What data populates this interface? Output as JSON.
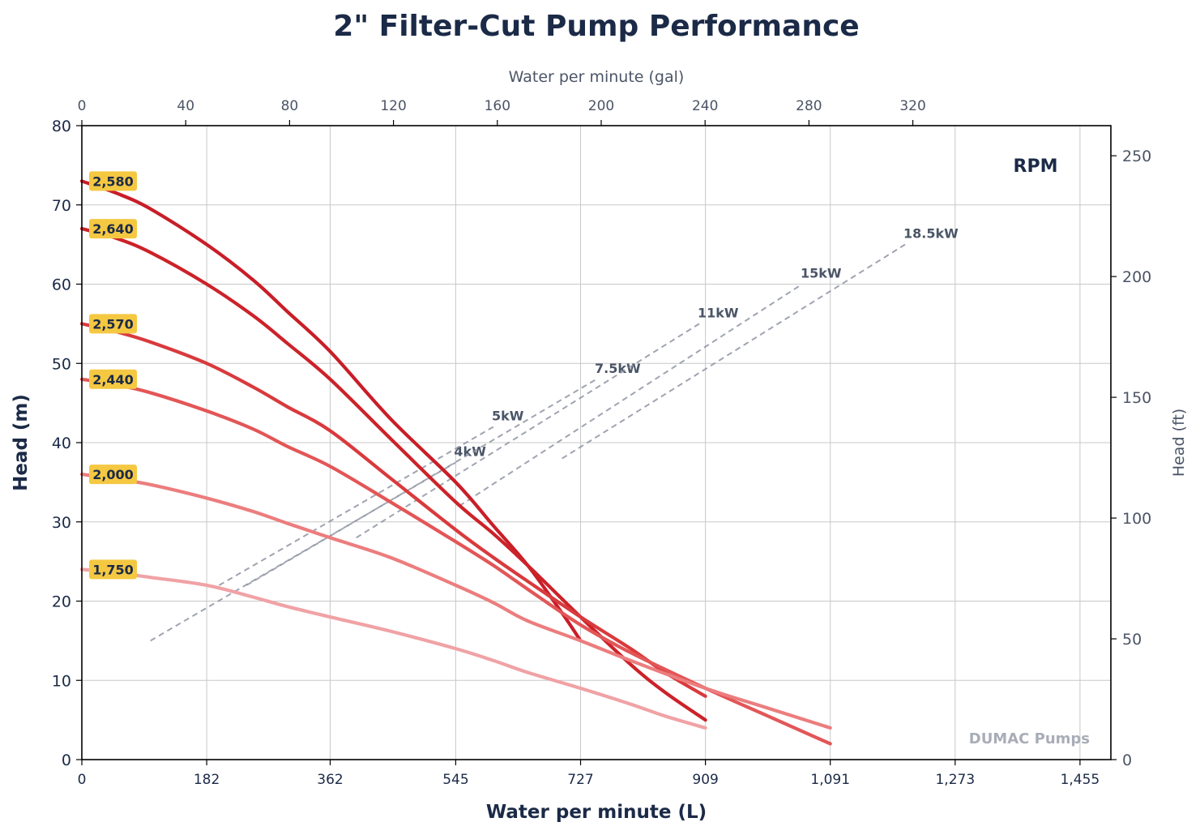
{
  "chart_data": {
    "type": "line",
    "title": "2\" Filter-Cut Pump Performance",
    "xlabel": "Water per minute (L)",
    "ylabel": "Head (m)",
    "x2label": "Water per minute (gal)",
    "y2label": "Head (ft)",
    "legend_title": "RPM",
    "watermark": "DUMAC Pumps",
    "xlim": [
      0,
      1500
    ],
    "ylim": [
      0,
      80
    ],
    "x_ticks": [
      0,
      182,
      362,
      545,
      727,
      909,
      1091,
      1273,
      1455
    ],
    "x_tick_labels": [
      "0",
      "182",
      "362",
      "545",
      "727",
      "909",
      "1,091",
      "1,273",
      "1,455"
    ],
    "y_ticks": [
      0,
      10,
      20,
      30,
      40,
      50,
      60,
      70,
      80
    ],
    "y_tick_labels": [
      "0",
      "10",
      "20",
      "30",
      "40",
      "50",
      "60",
      "70",
      "80"
    ],
    "x2_ticks": [
      0,
      40,
      80,
      120,
      160,
      200,
      240,
      280,
      320
    ],
    "x2_tick_labels": [
      "0",
      "40",
      "80",
      "120",
      "160",
      "200",
      "240",
      "280",
      "320"
    ],
    "y2_ticks": [
      0,
      50,
      100,
      150,
      200,
      250
    ],
    "y2_tick_labels": [
      "0",
      "50",
      "100",
      "150",
      "200",
      "250"
    ],
    "grid": true,
    "series": [
      {
        "name": "2,580",
        "color": "#c81e28",
        "x": [
          0,
          50,
          100,
          182,
          250,
          300,
          362,
          450,
          545,
          600,
          650,
          700,
          727
        ],
        "y": [
          73,
          71.5,
          69.5,
          65,
          60.5,
          56.5,
          51.5,
          43,
          35,
          29.5,
          24.5,
          18.5,
          15
        ]
      },
      {
        "name": "2,640",
        "color": "#cc2229",
        "x": [
          0,
          50,
          100,
          182,
          250,
          300,
          362,
          450,
          545,
          600,
          650,
          727,
          800,
          850,
          909
        ],
        "y": [
          67,
          65.8,
          64,
          60,
          56,
          52.5,
          48,
          40.5,
          32.5,
          28.5,
          24.5,
          18,
          12,
          8.5,
          5
        ]
      },
      {
        "name": "2,570",
        "color": "#d93a3d",
        "x": [
          0,
          50,
          100,
          182,
          250,
          300,
          362,
          450,
          545,
          600,
          650,
          727,
          800,
          850,
          909
        ],
        "y": [
          55,
          54,
          52.7,
          50,
          47,
          44.5,
          41.5,
          35.5,
          29,
          25.5,
          22.5,
          18,
          14,
          11,
          8
        ]
      },
      {
        "name": "2,440",
        "color": "#e35657",
        "x": [
          0,
          50,
          100,
          182,
          250,
          300,
          362,
          450,
          545,
          600,
          650,
          727,
          800,
          909,
          1000,
          1091
        ],
        "y": [
          48,
          47.3,
          46.3,
          44,
          41.7,
          39.5,
          37,
          32.5,
          27.5,
          24.5,
          21.5,
          17,
          13.5,
          9,
          5.5,
          2
        ]
      },
      {
        "name": "2,000",
        "color": "#ec7d7e",
        "x": [
          0,
          50,
          100,
          182,
          250,
          300,
          362,
          450,
          545,
          600,
          650,
          727,
          800,
          909,
          1000,
          1091
        ],
        "y": [
          36,
          35.4,
          34.7,
          33,
          31.3,
          29.8,
          28,
          25.5,
          22,
          19.8,
          17.5,
          15,
          12.5,
          9,
          6.5,
          4
        ]
      },
      {
        "name": "1,750",
        "color": "#f0a2a5",
        "x": [
          0,
          50,
          100,
          182,
          250,
          300,
          362,
          450,
          545,
          600,
          650,
          727,
          800,
          850,
          909
        ],
        "y": [
          24,
          23.6,
          23,
          22,
          20.5,
          19.3,
          18,
          16.2,
          14,
          12.5,
          11,
          9,
          7,
          5.5,
          4
        ]
      }
    ],
    "power_lines": [
      {
        "label": "4kW",
        "x": [
          100,
          545
        ],
        "y": [
          15,
          37.5
        ]
      },
      {
        "label": "5kW",
        "x": [
          200,
          600
        ],
        "y": [
          22,
          42
        ]
      },
      {
        "label": "7.5kW",
        "x": [
          240,
          750
        ],
        "y": [
          22,
          48
        ]
      },
      {
        "label": "11kW",
        "x": [
          400,
          900
        ],
        "y": [
          28,
          55
        ]
      },
      {
        "label": "15kW",
        "x": [
          550,
          1050
        ],
        "y": [
          32,
          60
        ]
      },
      {
        "label": "18.5kW",
        "x": [
          700,
          1200
        ],
        "y": [
          38,
          65
        ]
      }
    ],
    "power_line_color": "#8f95a3",
    "rpm_label_color": "#f5c842"
  }
}
